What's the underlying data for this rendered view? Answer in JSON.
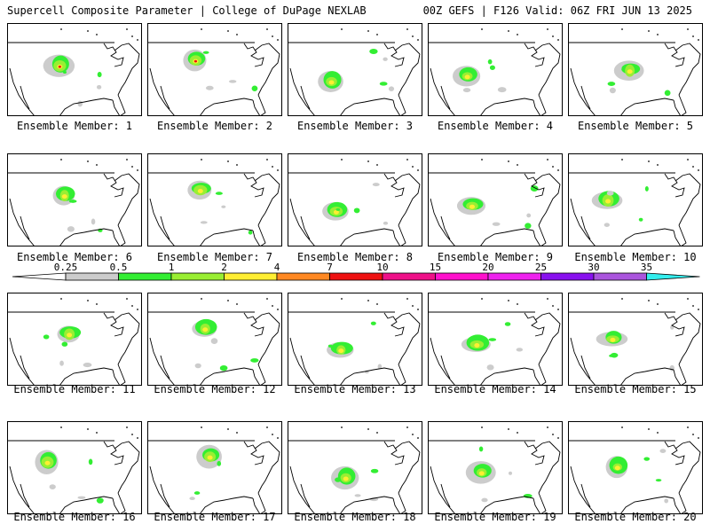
{
  "header": {
    "title": "Supercell Composite Parameter | College of DuPage NEXLAB",
    "run_info": "00Z GEFS | F126 Valid: 06Z FRI JUN 13 2025"
  },
  "members": [
    {
      "label": "Ensemble Member: 1"
    },
    {
      "label": "Ensemble Member: 2"
    },
    {
      "label": "Ensemble Member: 3"
    },
    {
      "label": "Ensemble Member: 4"
    },
    {
      "label": "Ensemble Member: 5"
    },
    {
      "label": "Ensemble Member: 6"
    },
    {
      "label": "Ensemble Member: 7"
    },
    {
      "label": "Ensemble Member: 8"
    },
    {
      "label": "Ensemble Member: 9"
    },
    {
      "label": "Ensemble Member: 10"
    },
    {
      "label": "Ensemble Member: 11"
    },
    {
      "label": "Ensemble Member: 12"
    },
    {
      "label": "Ensemble Member: 13"
    },
    {
      "label": "Ensemble Member: 14"
    },
    {
      "label": "Ensemble Member: 15"
    },
    {
      "label": "Ensemble Member: 16"
    },
    {
      "label": "Ensemble Member: 17"
    },
    {
      "label": "Ensemble Member: 18"
    },
    {
      "label": "Ensemble Member: 19"
    },
    {
      "label": "Ensemble Member: 20"
    }
  ],
  "colorbar": {
    "thresholds": [
      "0.25",
      "0.5",
      "1",
      "2",
      "4",
      "7",
      "10",
      "15",
      "20",
      "25",
      "30",
      "35"
    ],
    "colors": [
      "#cccccc",
      "#33ee33",
      "#99ee33",
      "#ffee33",
      "#ff8822",
      "#ee1111",
      "#ee1188",
      "#ff11cc",
      "#ee22ee",
      "#8811ee",
      "#aa55dd",
      "#33eeee"
    ]
  }
}
